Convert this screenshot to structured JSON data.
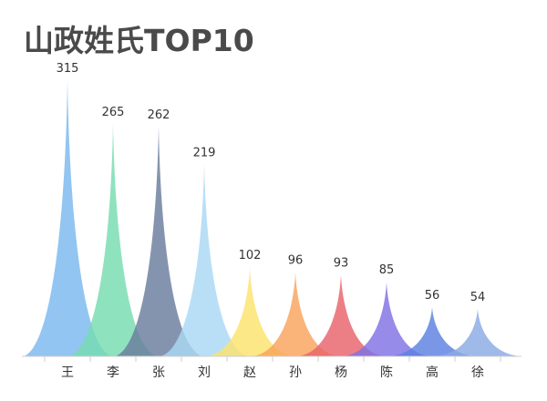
{
  "title": "山政姓氏TOP10",
  "chart_data": {
    "type": "area",
    "title": "山政姓氏TOP10",
    "categories": [
      "王",
      "李",
      "张",
      "刘",
      "赵",
      "孙",
      "杨",
      "陈",
      "高",
      "徐"
    ],
    "values": [
      315,
      265,
      262,
      219,
      102,
      96,
      93,
      85,
      56,
      54
    ],
    "colors": [
      "#7ab8ee",
      "#76dcb0",
      "#6a7c9c",
      "#aad8f4",
      "#fde36e",
      "#f9a35c",
      "#e8636a",
      "#7f72e4",
      "#5c80e0",
      "#8aaae4"
    ],
    "ylim": [
      0,
      315
    ],
    "grid": false,
    "legend": "none"
  }
}
